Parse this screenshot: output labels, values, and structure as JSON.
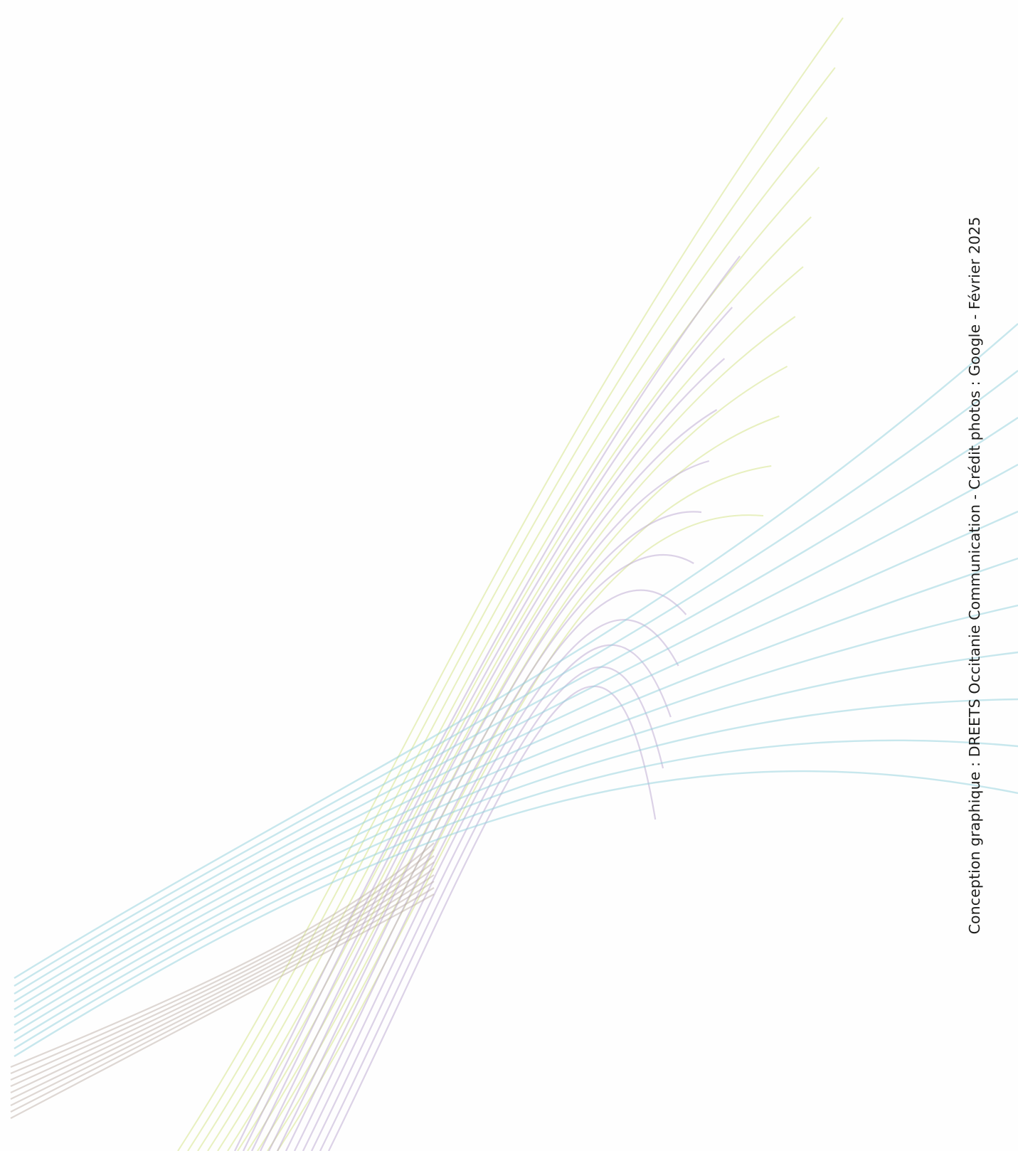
{
  "page": {
    "credit_text": "Conception graphique : DREETS Occitanie Communication - Crédit photos : Google - Février 2025"
  },
  "decoration": {
    "description_colors": {
      "yellow_green": "#d6e48a",
      "lavender": "#b9a6cf",
      "light_blue": "#8fd0dc",
      "taupe": "#b8a8a0"
    }
  }
}
